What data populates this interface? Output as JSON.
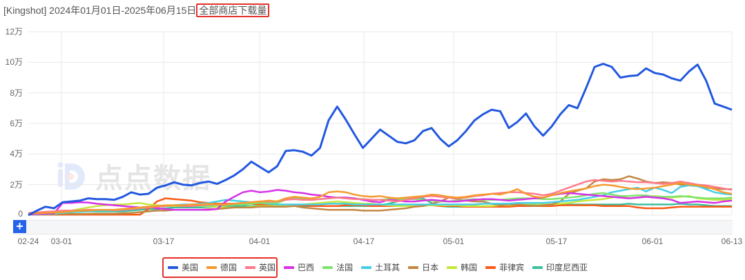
{
  "header": {
    "app_tag": "[Kingshot]",
    "date_range": "2024年01月01日-2025年06月15日",
    "metric": "全部商店下载量"
  },
  "watermark": {
    "text": "点点数据"
  },
  "controls": {
    "zoom_plus": "+"
  },
  "colors": {
    "grid": "#e8e8e8",
    "highlight_border": "#e5302a"
  },
  "chart_data": {
    "type": "line",
    "title": "[Kingshot] 2024年01月01日-2025年06月15日 全部商店下载量",
    "xlabel": "",
    "ylabel": "下载量",
    "ylim": [
      0,
      120000
    ],
    "y_ticks": [
      "0",
      "2万",
      "4万",
      "6万",
      "8万",
      "10万",
      "12万"
    ],
    "y_tick_values": [
      0,
      20000,
      40000,
      60000,
      80000,
      100000,
      120000
    ],
    "x_ticks": [
      "02-24",
      "03-01",
      "03-17",
      "04-01",
      "04-17",
      "05-01",
      "05-17",
      "06-01",
      "06-13"
    ],
    "grid": true,
    "legend_position": "bottom",
    "x_start": "02-24",
    "x_end": "06-13",
    "x_step_days": 2,
    "series": [
      {
        "name": "美国",
        "color": "#2258e0",
        "values": [
          0,
          3000,
          5500,
          4500,
          8500,
          9000,
          9500,
          11000,
          10500,
          10500,
          10000,
          12000,
          15000,
          13500,
          14000,
          18000,
          19500,
          21500,
          20000,
          19500,
          21000,
          22000,
          20500,
          23000,
          26000,
          30000,
          35000,
          31500,
          28000,
          32000,
          42000,
          42500,
          41500,
          39000,
          44000,
          62000,
          71000,
          62500,
          53000,
          44000,
          50000,
          56000,
          52000,
          48000,
          47000,
          49000,
          55000,
          57000,
          50000,
          45000,
          49000,
          55000,
          62000,
          66000,
          69000,
          68000,
          57000,
          61000,
          66500,
          58000,
          52000,
          58000,
          66000,
          72000,
          70000,
          83000,
          97000,
          99000,
          97000,
          90000,
          91000,
          91500,
          96000,
          93000,
          92000,
          89500,
          88000,
          94000,
          98500,
          88000,
          73000,
          71000,
          69000
        ]
      },
      {
        "name": "德国",
        "color": "#f59a2f",
        "values": [
          1000,
          1200,
          1500,
          1800,
          2000,
          2500,
          3000,
          3000,
          3500,
          3500,
          3500,
          4000,
          4500,
          5000,
          5500,
          6000,
          6500,
          6500,
          6500,
          7000,
          7000,
          7500,
          7000,
          7000,
          7500,
          8000,
          8500,
          9000,
          9500,
          9000,
          11000,
          12000,
          11500,
          11000,
          12000,
          15000,
          15500,
          15000,
          13500,
          12500,
          12000,
          12500,
          11500,
          11000,
          11500,
          12000,
          12500,
          13500,
          13000,
          12000,
          11500,
          12000,
          13000,
          13500,
          14000,
          13500,
          15000,
          17000,
          14000,
          12000,
          11500,
          13000,
          14500,
          15500,
          16500,
          17500,
          19000,
          20000,
          19500,
          18500,
          17500,
          17000,
          17500,
          18000,
          19000,
          20000,
          21000,
          20000,
          19500,
          18500,
          17000,
          15000,
          14000
        ]
      },
      {
        "name": "英国",
        "color": "#ff7a8a",
        "values": [
          1500,
          1800,
          2200,
          2500,
          3000,
          3000,
          3200,
          3500,
          3500,
          3500,
          3200,
          3500,
          4000,
          4500,
          5000,
          5500,
          6000,
          6500,
          6000,
          6000,
          6500,
          7000,
          7000,
          7000,
          7500,
          8000,
          8500,
          9000,
          9000,
          9000,
          10000,
          10500,
          10000,
          10000,
          10500,
          11000,
          11500,
          11000,
          10500,
          10500,
          10000,
          10000,
          9500,
          9000,
          10000,
          11000,
          12000,
          12500,
          12000,
          11500,
          11000,
          11500,
          12500,
          13000,
          14000,
          14500,
          15000,
          15000,
          14500,
          14000,
          13000,
          14000,
          16000,
          18000,
          20000,
          22000,
          23000,
          22500,
          22000,
          22500,
          22000,
          21500,
          21500,
          21000,
          20500,
          21000,
          22000,
          21000,
          20000,
          19500,
          18500,
          17500,
          16500
        ]
      },
      {
        "name": "巴西",
        "color": "#d631e6",
        "values": [
          500,
          800,
          1000,
          1200,
          8000,
          8000,
          8500,
          8200,
          7500,
          7000,
          6500,
          6000,
          5500,
          5000,
          5500,
          4500,
          4000,
          3500,
          3500,
          3500,
          3500,
          3500,
          4000,
          9000,
          12000,
          15000,
          16000,
          15000,
          15500,
          16500,
          16000,
          15000,
          14500,
          13500,
          13000,
          12000,
          11500,
          11500,
          11000,
          10000,
          9000,
          8500,
          10000,
          9500,
          9000,
          9000,
          9500,
          10000,
          9500,
          9000,
          9000,
          9500,
          10000,
          10500,
          10500,
          10000,
          9500,
          10000,
          10500,
          11000,
          11500,
          13000,
          14000,
          14500,
          14000,
          13500,
          13000,
          12500,
          12000,
          11500,
          11000,
          11500,
          12000,
          11500,
          11000,
          10000,
          8000,
          8500,
          9000,
          8500,
          8000,
          9000,
          9500
        ]
      },
      {
        "name": "法国",
        "color": "#7fe36e",
        "values": [
          800,
          1000,
          1200,
          1500,
          2000,
          2500,
          3000,
          3000,
          3500,
          3500,
          3500,
          4000,
          4500,
          5000,
          5500,
          6000,
          6000,
          6500,
          6500,
          6000,
          6000,
          6500,
          6500,
          6500,
          7000,
          7000,
          7500,
          8000,
          8000,
          8000,
          10000,
          11000,
          10500,
          10000,
          10500,
          11000,
          11500,
          11500,
          11000,
          10500,
          10000,
          10000,
          10500,
          10500,
          10500,
          10500,
          10000,
          9500,
          9000,
          9000,
          9500,
          10000,
          10500,
          10000,
          10000,
          10000,
          10500,
          11000,
          11000,
          11000,
          10500,
          10500,
          11000,
          11500,
          12000,
          13000,
          14000,
          14500,
          13500,
          12500,
          12500,
          13000,
          13000,
          12000,
          12000,
          12000,
          12500,
          12000,
          11500,
          11000,
          11000,
          11000,
          11500
        ]
      },
      {
        "name": "土耳其",
        "color": "#45cfe6",
        "values": [
          500,
          600,
          800,
          1000,
          1500,
          2000,
          2500,
          2500,
          3000,
          3000,
          3000,
          3500,
          4000,
          4500,
          5000,
          5500,
          6000,
          6500,
          7000,
          7000,
          7500,
          8000,
          9000,
          10000,
          9500,
          9000,
          8500,
          8000,
          7500,
          7000,
          7000,
          7000,
          7000,
          7000,
          7000,
          7500,
          7500,
          7500,
          7000,
          7000,
          7000,
          7000,
          7000,
          7000,
          7000,
          7000,
          7000,
          7000,
          7000,
          7000,
          7000,
          7000,
          7000,
          7500,
          7500,
          7500,
          7500,
          8000,
          8000,
          8000,
          8000,
          8500,
          9000,
          9500,
          10000,
          11000,
          12000,
          13000,
          15000,
          16000,
          17000,
          18000,
          15500,
          18000,
          16500,
          14500,
          18500,
          19500,
          19000,
          17000,
          15000,
          14000,
          13500
        ]
      },
      {
        "name": "日本",
        "color": "#c28743",
        "values": [
          300,
          400,
          500,
          600,
          700,
          800,
          800,
          900,
          1000,
          1000,
          1000,
          1200,
          1500,
          2000,
          2500,
          3000,
          3000,
          3500,
          3500,
          3500,
          3500,
          4000,
          4000,
          4500,
          5000,
          5000,
          5000,
          5500,
          5500,
          5500,
          5500,
          6000,
          5000,
          4500,
          4000,
          3500,
          3500,
          3500,
          3500,
          3000,
          3000,
          3000,
          3500,
          4000,
          4500,
          5500,
          6000,
          7500,
          9000,
          11500,
          10500,
          9500,
          9000,
          9000,
          7500,
          6500,
          7000,
          7000,
          6500,
          6000,
          6500,
          7000,
          9000,
          14000,
          16000,
          17500,
          22000,
          23500,
          23000,
          23500,
          25500,
          24000,
          22000,
          21000,
          21500,
          21000,
          20000,
          19500,
          19000,
          18000,
          17500,
          17000,
          17000
        ]
      },
      {
        "name": "韩国",
        "color": "#c5e83a",
        "values": [
          600,
          800,
          1000,
          1200,
          2000,
          3000,
          4000,
          5000,
          6000,
          6500,
          7000,
          7000,
          7500,
          8000,
          7000,
          6500,
          6000,
          6000,
          6000,
          6000,
          6000,
          6000,
          5500,
          5000,
          5000,
          5000,
          5500,
          6000,
          6000,
          6000,
          6500,
          7000,
          7000,
          7500,
          8000,
          8500,
          9000,
          8500,
          8000,
          7500,
          7500,
          7000,
          6500,
          6000,
          6000,
          6000,
          6000,
          6500,
          6500,
          6500,
          6500,
          6000,
          6000,
          6000,
          6000,
          6500,
          6500,
          7000,
          7500,
          7500,
          7000,
          7000,
          7500,
          8000,
          9000,
          9500,
          10000,
          10500,
          11500,
          12500,
          11000,
          11500,
          12000,
          12500,
          12000,
          11500,
          12000,
          12500,
          11000,
          10500,
          10000,
          10000,
          10500
        ]
      },
      {
        "name": "菲律宾",
        "color": "#fa5a14",
        "values": [
          400,
          400,
          300,
          300,
          300,
          300,
          300,
          300,
          300,
          300,
          300,
          300,
          300,
          300,
          4000,
          9000,
          11000,
          10500,
          10000,
          9500,
          8500,
          8000,
          7500,
          7500,
          7500,
          7500,
          7500,
          7000,
          7000,
          6500,
          6500,
          6500,
          6500,
          6000,
          6000,
          6000,
          6000,
          6500,
          6500,
          6500,
          6000,
          6000,
          6000,
          6000,
          6500,
          6500,
          6500,
          6500,
          6000,
          6000,
          6000,
          5500,
          5500,
          5500,
          5500,
          5500,
          5500,
          6000,
          6000,
          6000,
          6000,
          6000,
          6500,
          6500,
          6500,
          6500,
          6500,
          6000,
          6000,
          6000,
          6000,
          5000,
          4500,
          4500,
          4500,
          5000,
          5500,
          5500,
          5500,
          5500,
          5500,
          5500,
          5500
        ]
      },
      {
        "name": "印度尼西亚",
        "color": "#3bbf9e",
        "values": [
          300,
          500,
          800,
          1000,
          1500,
          2000,
          2200,
          2500,
          2500,
          2500,
          2500,
          2500,
          3000,
          3500,
          4000,
          4000,
          4500,
          5000,
          5000,
          5000,
          5000,
          5500,
          5500,
          5500,
          6000,
          6000,
          6000,
          6500,
          6500,
          6500,
          6500,
          6500,
          6000,
          6000,
          6000,
          6000,
          6000,
          6000,
          6000,
          6000,
          6000,
          6500,
          7500,
          9000,
          10500,
          11500,
          11000,
          8000,
          6000,
          5500,
          5500,
          5500,
          5500,
          5500,
          5500,
          6000,
          6000,
          6000,
          6500,
          7000,
          7000,
          7000,
          7000,
          7000,
          7000,
          7000,
          7000,
          7000,
          7000,
          7000,
          7500,
          7000,
          7000,
          7000,
          7000,
          7000,
          7500,
          7000,
          7000,
          6500,
          6000,
          6000,
          6000
        ]
      }
    ]
  }
}
